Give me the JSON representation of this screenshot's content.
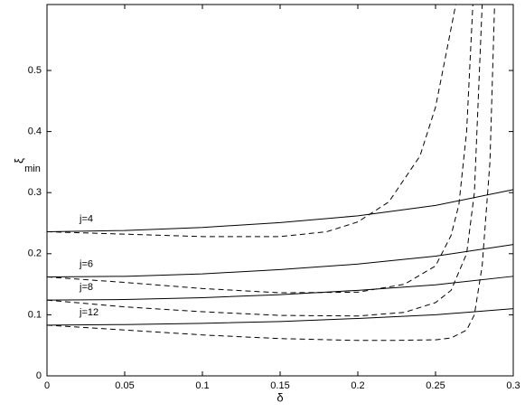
{
  "chart_data": {
    "type": "line",
    "xlabel": "δ",
    "ylabel": "ξ",
    "ylabel_subscript": "min",
    "xlim": [
      0,
      0.3
    ],
    "ylim": [
      0,
      0.608
    ],
    "xticks": [
      0,
      0.05,
      0.1,
      0.15,
      0.2,
      0.25,
      0.3
    ],
    "yticks": [
      0,
      0.1,
      0.2,
      0.3,
      0.4,
      0.5
    ],
    "series": [
      {
        "name": "j=4",
        "color": "#000000",
        "style": "solid",
        "x": [
          0,
          0.05,
          0.1,
          0.15,
          0.2,
          0.25,
          0.3
        ],
        "values": [
          0.236,
          0.238,
          0.243,
          0.251,
          0.262,
          0.279,
          0.305
        ]
      },
      {
        "name": "j=6",
        "color": "#000000",
        "style": "solid",
        "x": [
          0,
          0.05,
          0.1,
          0.15,
          0.2,
          0.25,
          0.3
        ],
        "values": [
          0.162,
          0.163,
          0.167,
          0.174,
          0.183,
          0.196,
          0.215
        ]
      },
      {
        "name": "j=8",
        "color": "#000000",
        "style": "solid",
        "x": [
          0,
          0.05,
          0.1,
          0.15,
          0.2,
          0.25,
          0.3
        ],
        "values": [
          0.124,
          0.125,
          0.128,
          0.133,
          0.14,
          0.149,
          0.163
        ]
      },
      {
        "name": "j=12",
        "color": "#000000",
        "style": "solid",
        "x": [
          0,
          0.05,
          0.1,
          0.15,
          0.2,
          0.25,
          0.3
        ],
        "values": [
          0.083,
          0.084,
          0.086,
          0.089,
          0.094,
          0.1,
          0.11
        ]
      },
      {
        "color": "#000000",
        "style": "dashed",
        "x": [
          0,
          0.05,
          0.1,
          0.15,
          0.18,
          0.2,
          0.22,
          0.24,
          0.25,
          0.257,
          0.263
        ],
        "values": [
          0.236,
          0.232,
          0.228,
          0.228,
          0.236,
          0.252,
          0.285,
          0.36,
          0.44,
          0.53,
          0.608
        ]
      },
      {
        "color": "#000000",
        "style": "dashed",
        "x": [
          0,
          0.05,
          0.1,
          0.15,
          0.2,
          0.23,
          0.25,
          0.26,
          0.265,
          0.27,
          0.274
        ],
        "values": [
          0.162,
          0.153,
          0.143,
          0.136,
          0.137,
          0.15,
          0.18,
          0.23,
          0.28,
          0.4,
          0.608
        ]
      },
      {
        "color": "#000000",
        "style": "dashed",
        "x": [
          0,
          0.05,
          0.1,
          0.15,
          0.2,
          0.23,
          0.25,
          0.26,
          0.27,
          0.275,
          0.28
        ],
        "values": [
          0.124,
          0.113,
          0.105,
          0.099,
          0.098,
          0.104,
          0.12,
          0.14,
          0.2,
          0.3,
          0.608
        ]
      },
      {
        "color": "#000000",
        "style": "dashed",
        "x": [
          0,
          0.05,
          0.1,
          0.15,
          0.2,
          0.22,
          0.25,
          0.26,
          0.27,
          0.275,
          0.28,
          0.285,
          0.288
        ],
        "values": [
          0.083,
          0.075,
          0.067,
          0.061,
          0.058,
          0.058,
          0.059,
          0.062,
          0.075,
          0.1,
          0.18,
          0.35,
          0.608
        ]
      }
    ]
  }
}
